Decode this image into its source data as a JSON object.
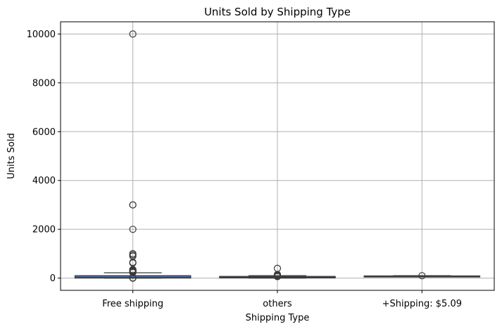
{
  "chart_data": {
    "type": "box",
    "title": "Units Sold by Shipping Type",
    "xlabel": "Shipping Type",
    "ylabel": "Units Sold",
    "categories": [
      "Free shipping",
      "others",
      "+Shipping: $5.09"
    ],
    "ylim": [
      -500,
      10500
    ],
    "yticks": [
      0,
      2000,
      4000,
      6000,
      8000,
      10000
    ],
    "grid": true,
    "box_color": "#3a3a3a",
    "box_fill": "#4c72b0",
    "series": [
      {
        "category": "Free shipping",
        "whisker_low": 1,
        "q1": 5,
        "median": 20,
        "q3": 100,
        "whisker_high": 220,
        "outliers": [
          10000,
          3000,
          3000,
          2000,
          1000,
          950,
          900,
          650,
          620,
          350,
          330,
          310,
          290,
          270,
          250,
          240,
          230,
          10,
          0
        ]
      },
      {
        "category": "others",
        "whisker_low": 1,
        "q1": 10,
        "median": 30,
        "q3": 70,
        "whisker_high": 100,
        "outliers": [
          400,
          150,
          120,
          100,
          80,
          60
        ]
      },
      {
        "category": "+Shipping: $5.09",
        "whisker_low": 50,
        "q1": 70,
        "median": 80,
        "q3": 90,
        "whisker_high": 100,
        "outliers": [
          100
        ]
      }
    ]
  }
}
